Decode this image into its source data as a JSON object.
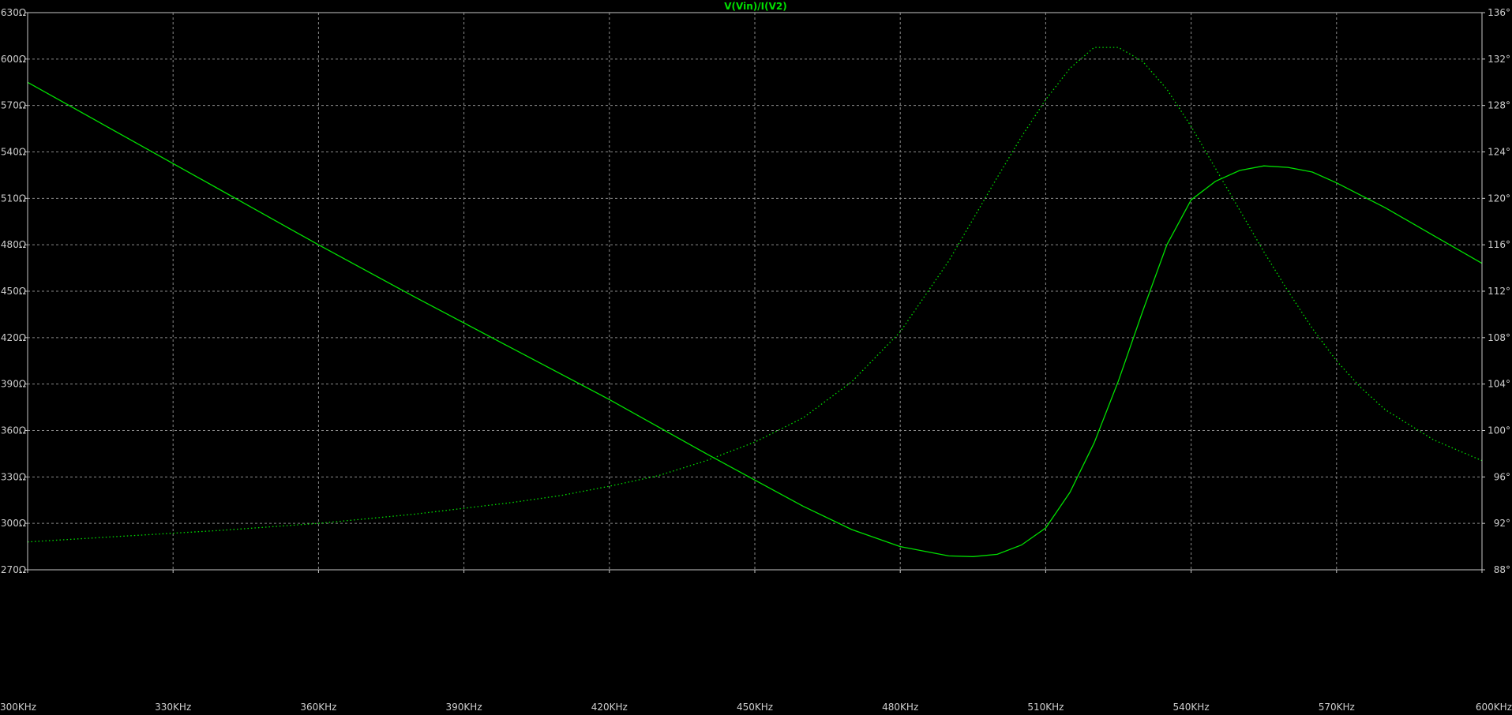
{
  "title": "V(Vin)/I(V2)",
  "colors": {
    "background": "#000000",
    "grid": "#8a8a8a",
    "frame": "#c8c8c8",
    "trace": "#00e000",
    "tick_text": "#cfcfcf"
  },
  "chart_data": {
    "type": "line",
    "title": "V(Vin)/I(V2)",
    "xlabel": "",
    "ylabel": "",
    "x_scale": "linear",
    "grid": true,
    "xlim": [
      300,
      600
    ],
    "ylim": [
      270,
      630
    ],
    "y2lim": [
      88,
      136
    ],
    "x_ticks": [
      "300KHz",
      "330KHz",
      "360KHz",
      "390KHz",
      "420KHz",
      "450KHz",
      "480KHz",
      "510KHz",
      "540KHz",
      "570KHz",
      "600KHz"
    ],
    "y_ticks": [
      "270Ω",
      "300Ω",
      "330Ω",
      "360Ω",
      "390Ω",
      "420Ω",
      "450Ω",
      "480Ω",
      "510Ω",
      "540Ω",
      "570Ω",
      "600Ω",
      "630Ω"
    ],
    "y2_ticks": [
      "88°",
      "92°",
      "96°",
      "100°",
      "104°",
      "108°",
      "112°",
      "116°",
      "120°",
      "124°",
      "128°",
      "132°",
      "136°"
    ],
    "series": [
      {
        "axis": "left",
        "style": "solid",
        "x": [
          300,
          320,
          340,
          360,
          380,
          400,
          420,
          440,
          450,
          460,
          470,
          480,
          485,
          490,
          495,
          500,
          505,
          510,
          515,
          520,
          525,
          530,
          535,
          540,
          545,
          550,
          555,
          560,
          565,
          570,
          575,
          580,
          590,
          600
        ],
        "values": [
          585,
          550,
          515,
          480,
          446,
          413,
          380,
          345,
          328,
          311,
          296,
          285,
          282,
          279,
          278.5,
          280,
          286,
          297,
          320,
          352,
          392,
          437,
          480,
          509,
          521,
          528,
          531,
          530,
          527,
          520,
          512,
          504,
          486,
          468
        ]
      },
      {
        "axis": "right",
        "style": "dotted",
        "x": [
          300,
          320,
          340,
          360,
          380,
          400,
          410,
          420,
          430,
          440,
          450,
          460,
          470,
          480,
          490,
          500,
          505,
          510,
          515,
          520,
          525,
          530,
          535,
          540,
          545,
          550,
          555,
          560,
          565,
          570,
          575,
          580,
          590,
          600
        ],
        "values": [
          90.4,
          90.9,
          91.4,
          92.0,
          92.8,
          93.8,
          94.4,
          95.2,
          96.1,
          97.4,
          99.0,
          101.1,
          104.2,
          108.5,
          114.6,
          121.8,
          125.3,
          128.5,
          131.2,
          133.0,
          133.0,
          131.8,
          129.4,
          126.2,
          122.6,
          119.0,
          115.4,
          112.0,
          108.8,
          106.0,
          103.7,
          101.8,
          99.2,
          97.4
        ]
      }
    ]
  }
}
